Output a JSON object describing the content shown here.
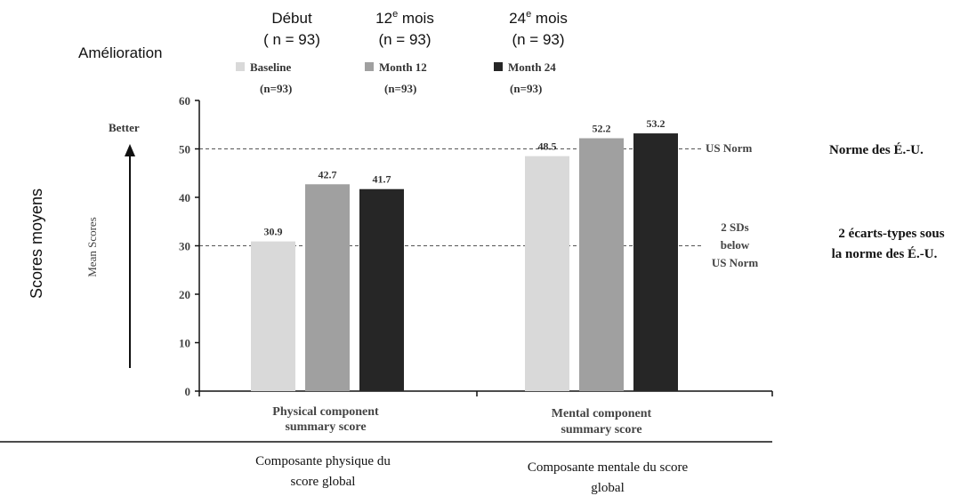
{
  "overlay_fr": {
    "amelioration": "Amélioration",
    "debut": "Début",
    "debut_n": "( n = 93)",
    "month12_num": "12",
    "month12_sup": "e",
    "month12_word": " mois",
    "month12_n": "(n = 93)",
    "month24_num": "24",
    "month24_sup": "e",
    "month24_word": " mois",
    "month24_n": "(n = 93)",
    "y_title": "Scores moyens",
    "us_norm": "Norme des É.-U.",
    "two_sd_line1": "2 écarts-types sous",
    "two_sd_line2": "la norme des É.-U.",
    "cat_physical_line1": "Composante physique du",
    "cat_physical_line2": "score global",
    "cat_mental_line1": "Composante mentale du score",
    "cat_mental_line2": "global"
  },
  "chart_labels_en": {
    "better": "Better",
    "ylabel": "Mean Scores",
    "us_norm": "US Norm",
    "two_sd_line1": "2 SDs",
    "two_sd_line2": "below",
    "two_sd_line3": "US Norm",
    "cat_physical_line1": "Physical component",
    "cat_physical_line2": "summary score",
    "cat_mental_line1": "Mental component",
    "cat_mental_line2": "summary score"
  },
  "legend": [
    {
      "name": "Baseline",
      "n": "(n=93)",
      "color": "#d9d9d9"
    },
    {
      "name": "Month 12",
      "n": "(n=93)",
      "color": "#a0a0a0"
    },
    {
      "name": "Month 24",
      "n": "(n=93)",
      "color": "#262626"
    }
  ],
  "chart_data": {
    "type": "bar",
    "categories": [
      "Physical component summary score",
      "Mental component summary score"
    ],
    "series": [
      {
        "name": "Baseline",
        "values": [
          30.9,
          48.5
        ],
        "color": "#d9d9d9"
      },
      {
        "name": "Month 12",
        "values": [
          42.7,
          52.2
        ],
        "color": "#a0a0a0"
      },
      {
        "name": "Month 24",
        "values": [
          41.7,
          53.2
        ],
        "color": "#262626"
      }
    ],
    "value_labels": [
      [
        "30.9",
        "48.5"
      ],
      [
        "42.7",
        "52.2"
      ],
      [
        "41.7",
        "53.2"
      ]
    ],
    "ylabel": "Mean Scores",
    "ylim": [
      0,
      60
    ],
    "yticks": [
      0,
      10,
      20,
      30,
      40,
      50,
      60
    ],
    "reference_lines": [
      {
        "value": 50,
        "label": "US Norm"
      },
      {
        "value": 30,
        "label": "2 SDs below US Norm"
      }
    ],
    "grid": false,
    "legend_position": "top"
  }
}
